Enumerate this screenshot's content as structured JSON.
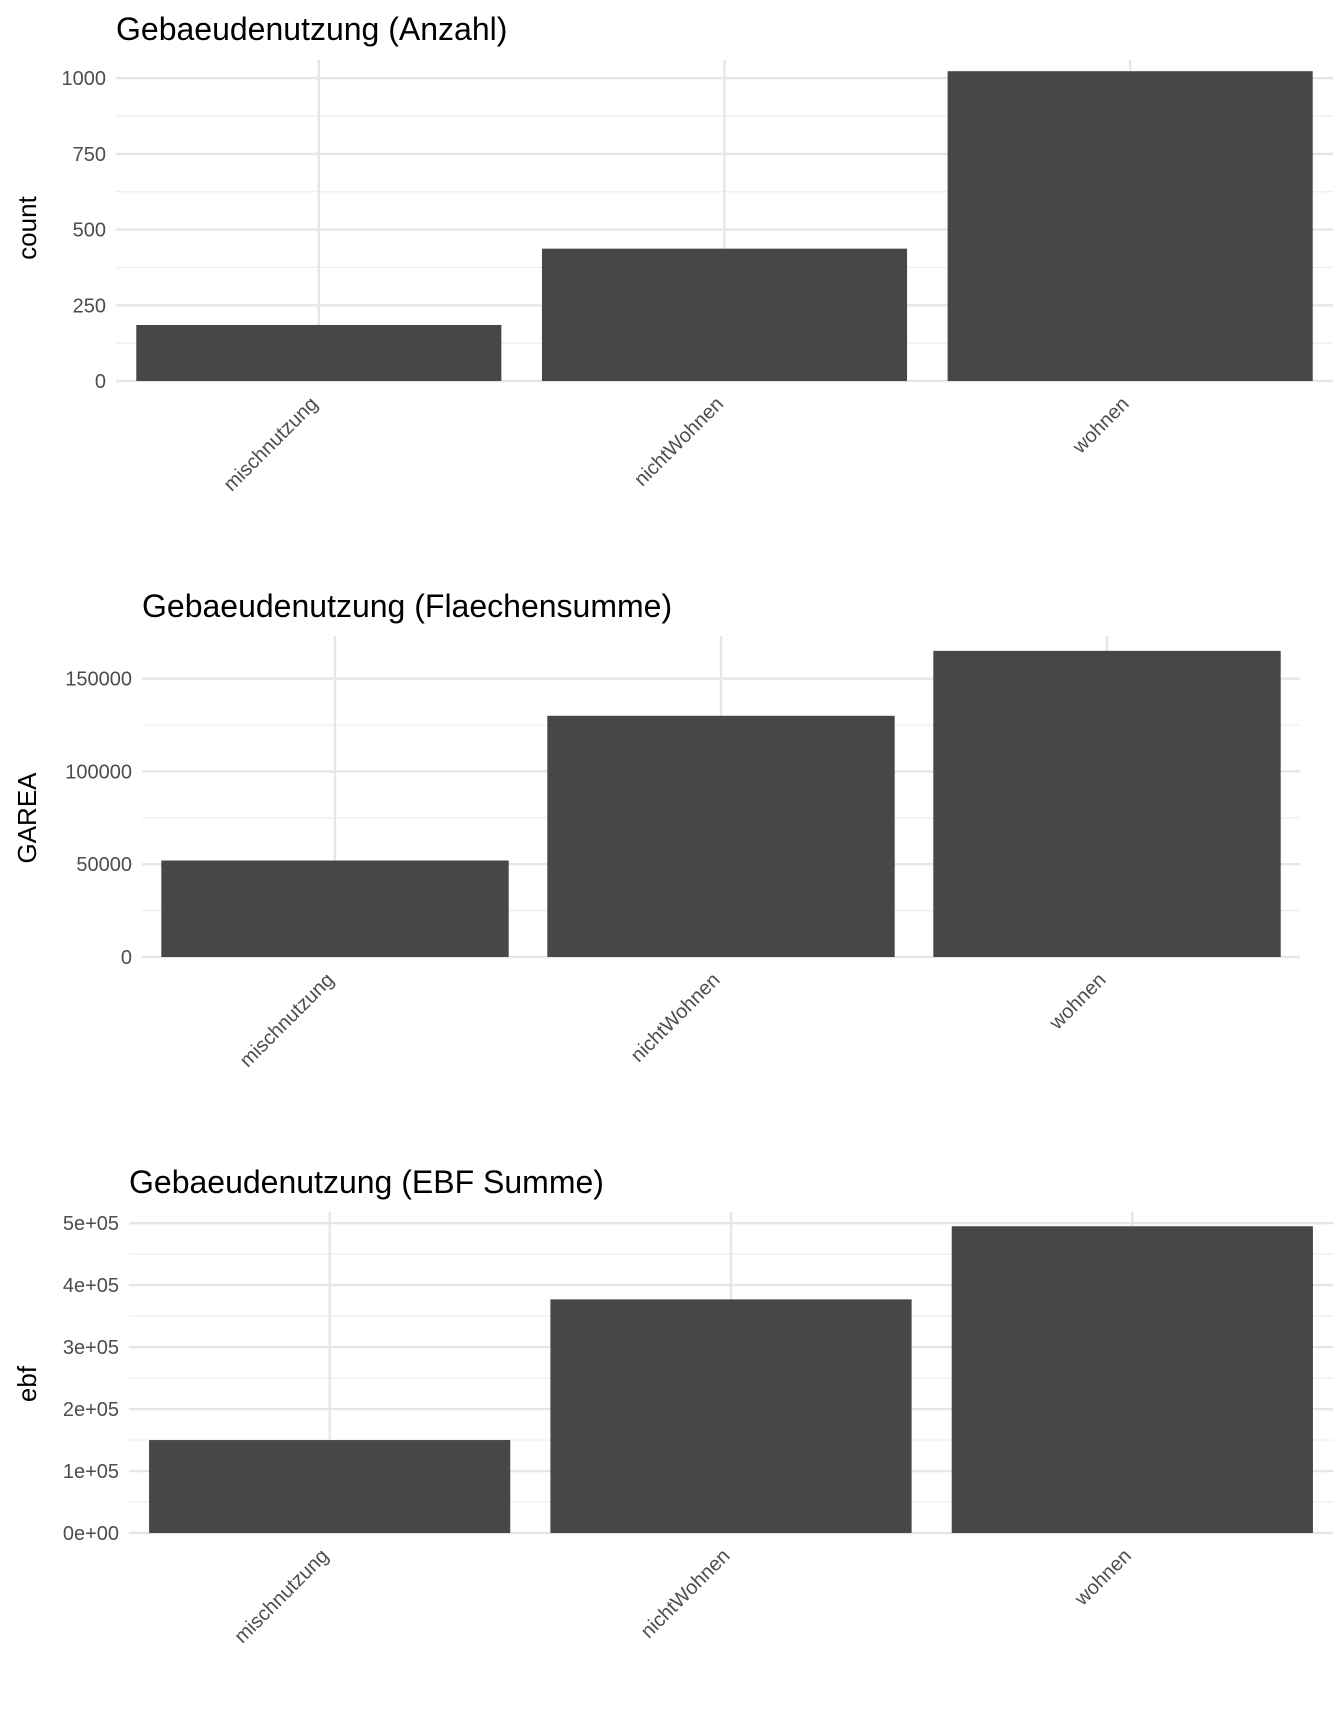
{
  "chart_data": [
    {
      "type": "bar",
      "title": "Gebaeudenutzung (Anzahl)",
      "xlabel": "",
      "ylabel": "count",
      "categories": [
        "mischnutzung",
        "nichtWohnen",
        "wohnen"
      ],
      "values": [
        185,
        437,
        1023
      ],
      "ylim": [
        0,
        1060
      ],
      "y_ticks": [
        0,
        250,
        500,
        750,
        1000
      ],
      "y_tick_labels": [
        "0",
        "250",
        "500",
        "750",
        "1000"
      ],
      "grid": true,
      "bar_color": "#474747"
    },
    {
      "type": "bar",
      "title": "Gebaeudenutzung (Flaechensumme)",
      "xlabel": "",
      "ylabel": "GAREA",
      "categories": [
        "mischnutzung",
        "nichtWohnen",
        "wohnen"
      ],
      "values": [
        52000,
        130000,
        165000
      ],
      "ylim": [
        0,
        173000
      ],
      "y_ticks": [
        0,
        50000,
        100000,
        150000
      ],
      "y_tick_labels": [
        "0",
        "50000",
        "100000",
        "150000"
      ],
      "grid": true,
      "bar_color": "#474747"
    },
    {
      "type": "bar",
      "title": "Gebaeudenutzung (EBF Summe)",
      "xlabel": "",
      "ylabel": "ebf",
      "categories": [
        "mischnutzung",
        "nichtWohnen",
        "wohnen"
      ],
      "values": [
        150000,
        377000,
        495000
      ],
      "ylim": [
        0,
        518000
      ],
      "y_ticks": [
        0,
        100000,
        200000,
        300000,
        400000,
        500000
      ],
      "y_tick_labels": [
        "0e+00",
        "1e+05",
        "2e+05",
        "3e+05",
        "4e+05",
        "5e+05"
      ],
      "grid": true,
      "bar_color": "#474747"
    }
  ]
}
